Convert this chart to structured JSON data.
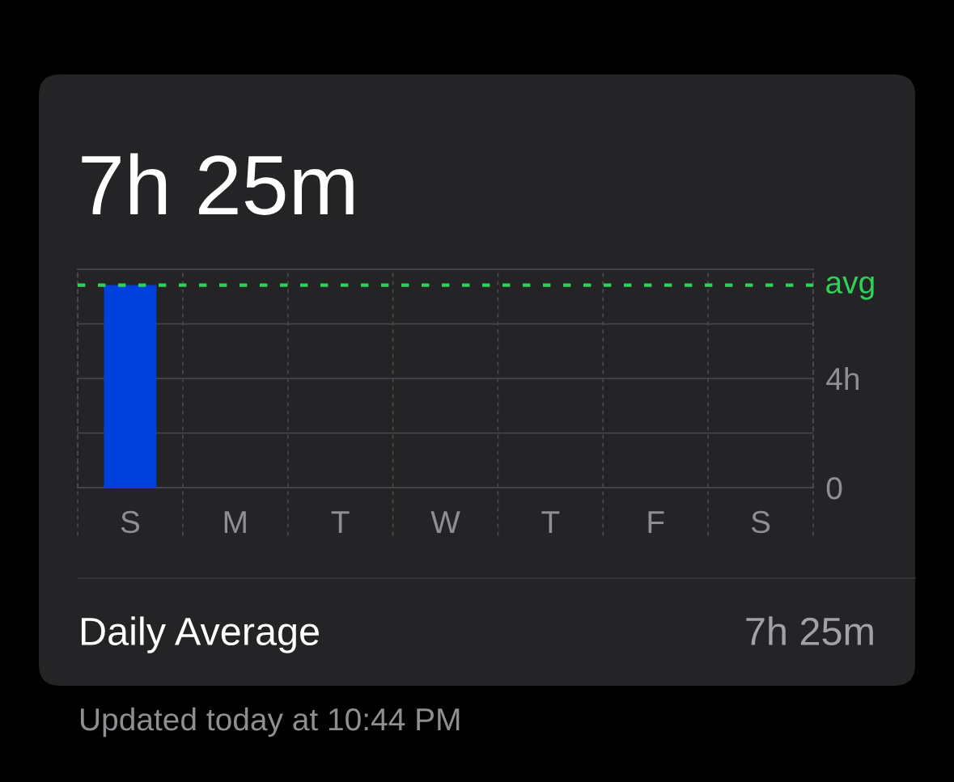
{
  "chart_data": {
    "type": "bar",
    "title": "7h 25m",
    "categories": [
      "S",
      "M",
      "T",
      "W",
      "T",
      "F",
      "S"
    ],
    "values": [
      7.42,
      null,
      null,
      null,
      null,
      null,
      null
    ],
    "color": "#0040dd",
    "ylim": [
      0,
      8
    ],
    "yticks": [
      {
        "value": 0,
        "label": "0"
      },
      {
        "value": 2,
        "label": null
      },
      {
        "value": 4,
        "label": "4h"
      },
      {
        "value": 6,
        "label": null
      },
      {
        "value": 8,
        "label": null
      }
    ],
    "grid": true,
    "ref_lines": [
      {
        "axis": "y",
        "value": 7.42,
        "label": "avg",
        "color": "#30d158",
        "line_style": "dashed"
      }
    ],
    "annotations": [
      "Daily Average",
      "7h 25m",
      "Updated today at 10:44 PM"
    ]
  }
}
